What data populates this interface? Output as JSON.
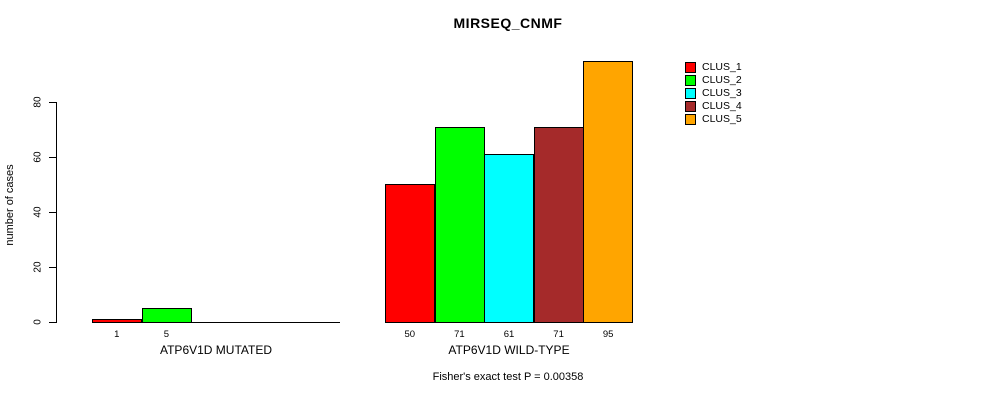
{
  "chart_data": {
    "type": "bar",
    "title": "MIRSEQ_CNMF",
    "ylabel": "number of cases",
    "xlabel": "",
    "ylim": [
      0,
      95
    ],
    "yticks": [
      0,
      20,
      40,
      60,
      80
    ],
    "grid": false,
    "legend_position": "right",
    "background_color": "#FFFFFF",
    "bar_colors": [
      "#FF0000",
      "#00FF00",
      "#00FFFF",
      "#A52A2A",
      "#FFA500"
    ],
    "legend": [
      {
        "name": "CLUS_1",
        "color": "#FF0000"
      },
      {
        "name": "CLUS_2",
        "color": "#00FF00"
      },
      {
        "name": "CLUS_3",
        "color": "#00FFFF"
      },
      {
        "name": "CLUS_4",
        "color": "#A52A2A"
      },
      {
        "name": "CLUS_5",
        "color": "#FFA500"
      }
    ],
    "groups": [
      {
        "label": "ATP6V1D MUTATED",
        "series": [
          "CLUS_1",
          "CLUS_2"
        ],
        "values": [
          1,
          5
        ],
        "bar_labels": [
          "1",
          "5"
        ],
        "axis_slots": 5
      },
      {
        "label": "ATP6V1D WILD-TYPE",
        "series": [
          "CLUS_1",
          "CLUS_2",
          "CLUS_3",
          "CLUS_4",
          "CLUS_5"
        ],
        "values": [
          50,
          71,
          61,
          71,
          95
        ],
        "bar_labels": [
          "50",
          "71",
          "61",
          "71",
          "95"
        ],
        "axis_slots": 5
      }
    ],
    "footnote": "Fisher's exact test P = 0.00358"
  }
}
